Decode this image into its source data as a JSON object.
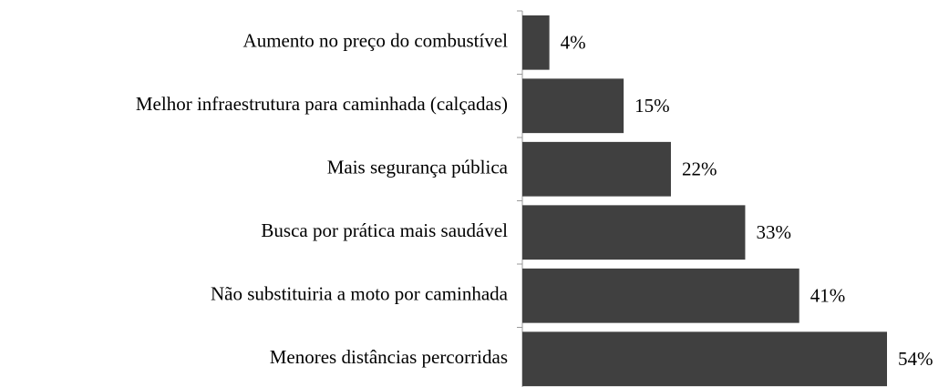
{
  "chart_data": {
    "type": "barh",
    "categories": [
      "Aumento no preço do combustível",
      "Melhor infraestrutura para caminhada (calçadas)",
      "Mais segurança pública",
      "Busca por prática mais saudável",
      "Não substituiria a moto por caminhada",
      "Menores distâncias percorridas"
    ],
    "values": [
      4,
      15,
      22,
      33,
      41,
      54
    ],
    "value_labels": [
      "4%",
      "15%",
      "22%",
      "33%",
      "41%",
      "54%"
    ],
    "color": "#404040"
  }
}
